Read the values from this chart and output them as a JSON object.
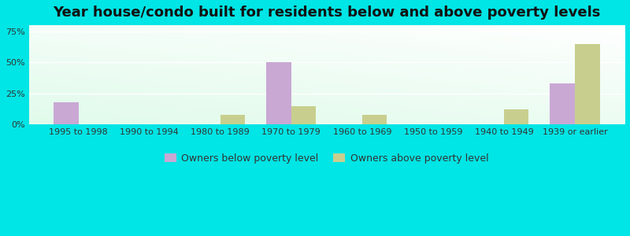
{
  "title": "Year house/condo built for residents below and above poverty levels",
  "categories": [
    "1995 to 1998",
    "1990 to 1994",
    "1980 to 1989",
    "1970 to 1979",
    "1960 to 1969",
    "1950 to 1959",
    "1940 to 1949",
    "1939 or earlier"
  ],
  "below_poverty": [
    18,
    0,
    0,
    50,
    0,
    0,
    0,
    33
  ],
  "above_poverty": [
    0,
    0,
    8,
    15,
    8,
    0,
    12,
    65
  ],
  "below_color": "#c9a8d4",
  "above_color": "#c8cf8e",
  "background_outer": "#00e5e5",
  "ylabel_ticks": [
    0,
    25,
    50,
    75
  ],
  "ylim": [
    0,
    80
  ],
  "bar_width": 0.35,
  "legend_below": "Owners below poverty level",
  "legend_above": "Owners above poverty level",
  "title_fontsize": 13,
  "tick_fontsize": 8,
  "legend_fontsize": 9
}
